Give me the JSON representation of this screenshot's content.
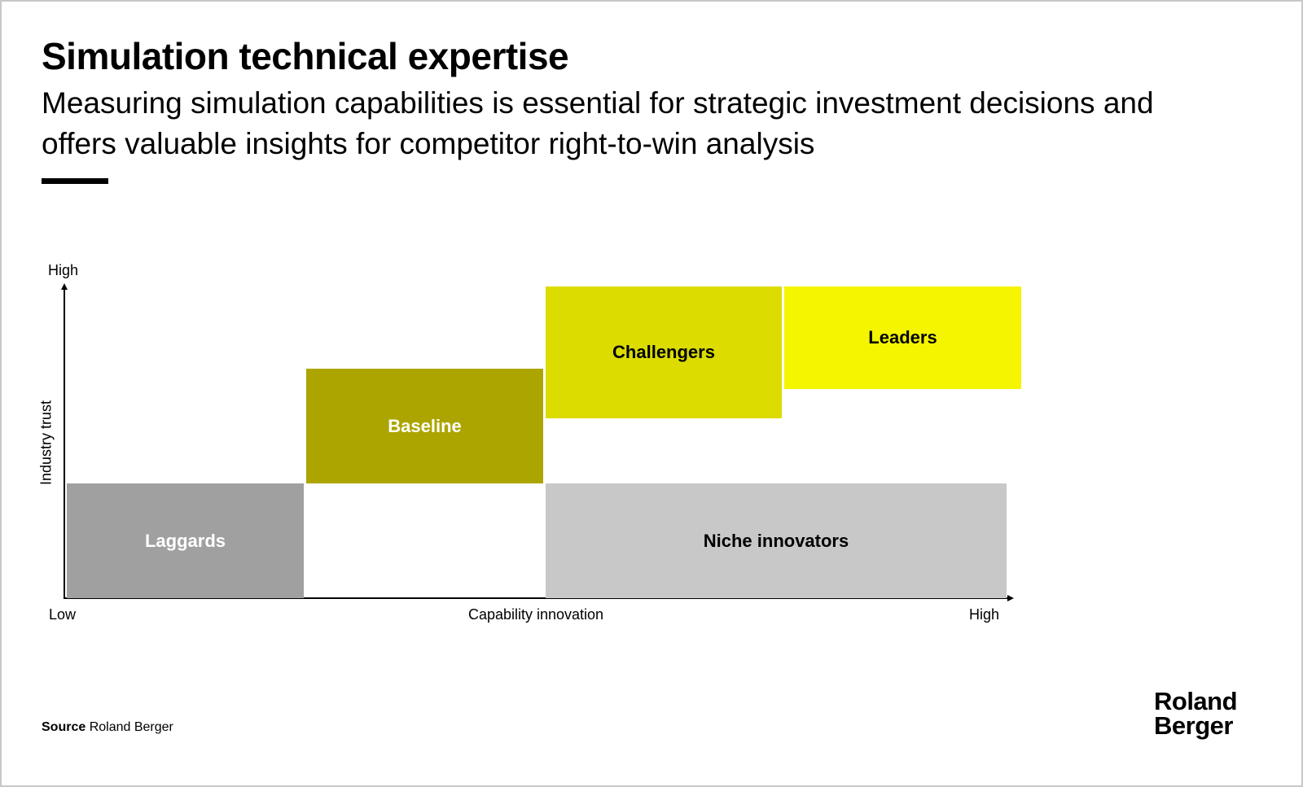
{
  "header": {
    "title": "Simulation technical expertise",
    "subtitle": "Measuring simulation capabilities is essential for strategic investment decisions and offers valuable insights for competitor right-to-win analysis"
  },
  "matrix": {
    "y_axis_title": "Industry trust",
    "x_axis_title": "Capability innovation",
    "y_high": "High",
    "x_low": "Low",
    "x_high": "High",
    "segments": [
      {
        "label": "Laggards",
        "color": "#a0a0a0",
        "text_color": "#ffffff"
      },
      {
        "label": "Baseline",
        "color": "#aca500",
        "text_color": "#ffffff"
      },
      {
        "label": "Challengers",
        "color": "#dcdc00",
        "text_color": "#000000"
      },
      {
        "label": "Leaders",
        "color": "#f5f500",
        "text_color": "#000000"
      },
      {
        "label": "Niche innovators",
        "color": "#c8c8c8",
        "text_color": "#000000"
      }
    ]
  },
  "footer": {
    "source_label": "Source",
    "source_value": "Roland Berger",
    "logo_line1": "Roland",
    "logo_line2": "Berger"
  }
}
